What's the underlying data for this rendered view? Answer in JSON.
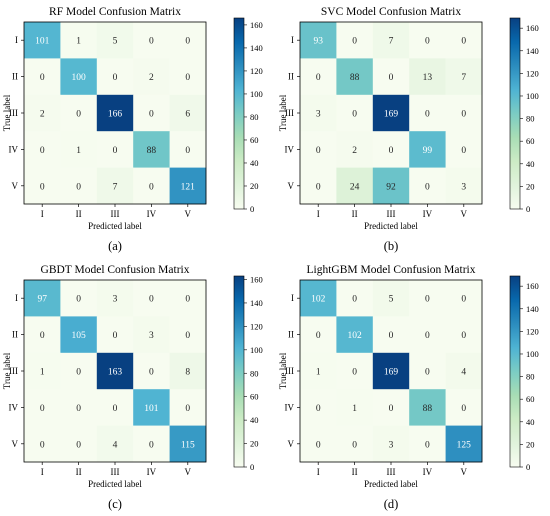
{
  "chart_data": [
    {
      "type": "heatmap",
      "title": "RF Model Confusion Matrix",
      "caption": "(a)",
      "xlabel": "Predicted label",
      "ylabel": "True label",
      "x_categories": [
        "I",
        "II",
        "III",
        "IV",
        "V"
      ],
      "y_categories": [
        "I",
        "II",
        "III",
        "IV",
        "V"
      ],
      "values": [
        [
          101,
          1,
          5,
          0,
          0
        ],
        [
          0,
          100,
          0,
          2,
          0
        ],
        [
          2,
          0,
          166,
          0,
          6
        ],
        [
          0,
          1,
          0,
          88,
          0
        ],
        [
          0,
          0,
          7,
          0,
          121
        ]
      ],
      "colorbar": {
        "min": 0,
        "max": 166,
        "ticks": [
          0,
          20,
          40,
          60,
          80,
          100,
          120,
          140,
          160
        ]
      }
    },
    {
      "type": "heatmap",
      "title": "SVC Model Confusion Matrix",
      "caption": "(b)",
      "xlabel": "Predicted label",
      "ylabel": "True label",
      "x_categories": [
        "I",
        "II",
        "III",
        "IV",
        "V"
      ],
      "y_categories": [
        "I",
        "II",
        "III",
        "IV",
        "V"
      ],
      "values": [
        [
          93,
          0,
          7,
          0,
          0
        ],
        [
          0,
          88,
          0,
          13,
          7
        ],
        [
          3,
          0,
          169,
          0,
          0
        ],
        [
          0,
          2,
          0,
          99,
          0
        ],
        [
          0,
          24,
          92,
          0,
          3
        ]
      ],
      "colorbar": {
        "min": 0,
        "max": 169,
        "ticks": [
          0,
          20,
          40,
          60,
          80,
          100,
          120,
          140,
          160
        ]
      }
    },
    {
      "type": "heatmap",
      "title": "GBDT Model Confusion Matrix",
      "caption": "(c)",
      "xlabel": "Predicted label",
      "ylabel": "True label",
      "x_categories": [
        "I",
        "II",
        "III",
        "IV",
        "V"
      ],
      "y_categories": [
        "I",
        "II",
        "III",
        "IV",
        "V"
      ],
      "values": [
        [
          97,
          0,
          3,
          0,
          0
        ],
        [
          0,
          105,
          0,
          3,
          0
        ],
        [
          1,
          0,
          163,
          0,
          8
        ],
        [
          0,
          0,
          0,
          101,
          0
        ],
        [
          0,
          0,
          4,
          0,
          115
        ]
      ],
      "colorbar": {
        "min": 0,
        "max": 163,
        "ticks": [
          0,
          20,
          40,
          60,
          80,
          100,
          120,
          140,
          160
        ]
      }
    },
    {
      "type": "heatmap",
      "title": "LightGBM Model Confusion Matrix",
      "caption": "(d)",
      "xlabel": "Predicted label",
      "ylabel": "True label",
      "x_categories": [
        "I",
        "II",
        "III",
        "IV",
        "V"
      ],
      "y_categories": [
        "I",
        "II",
        "III",
        "IV",
        "V"
      ],
      "values": [
        [
          102,
          0,
          5,
          0,
          0
        ],
        [
          0,
          102,
          0,
          0,
          0
        ],
        [
          1,
          0,
          169,
          0,
          4
        ],
        [
          0,
          1,
          0,
          88,
          0
        ],
        [
          0,
          0,
          3,
          0,
          125
        ]
      ],
      "colorbar": {
        "min": 0,
        "max": 169,
        "ticks": [
          0,
          20,
          40,
          60,
          80,
          100,
          120,
          140,
          160
        ]
      }
    }
  ]
}
